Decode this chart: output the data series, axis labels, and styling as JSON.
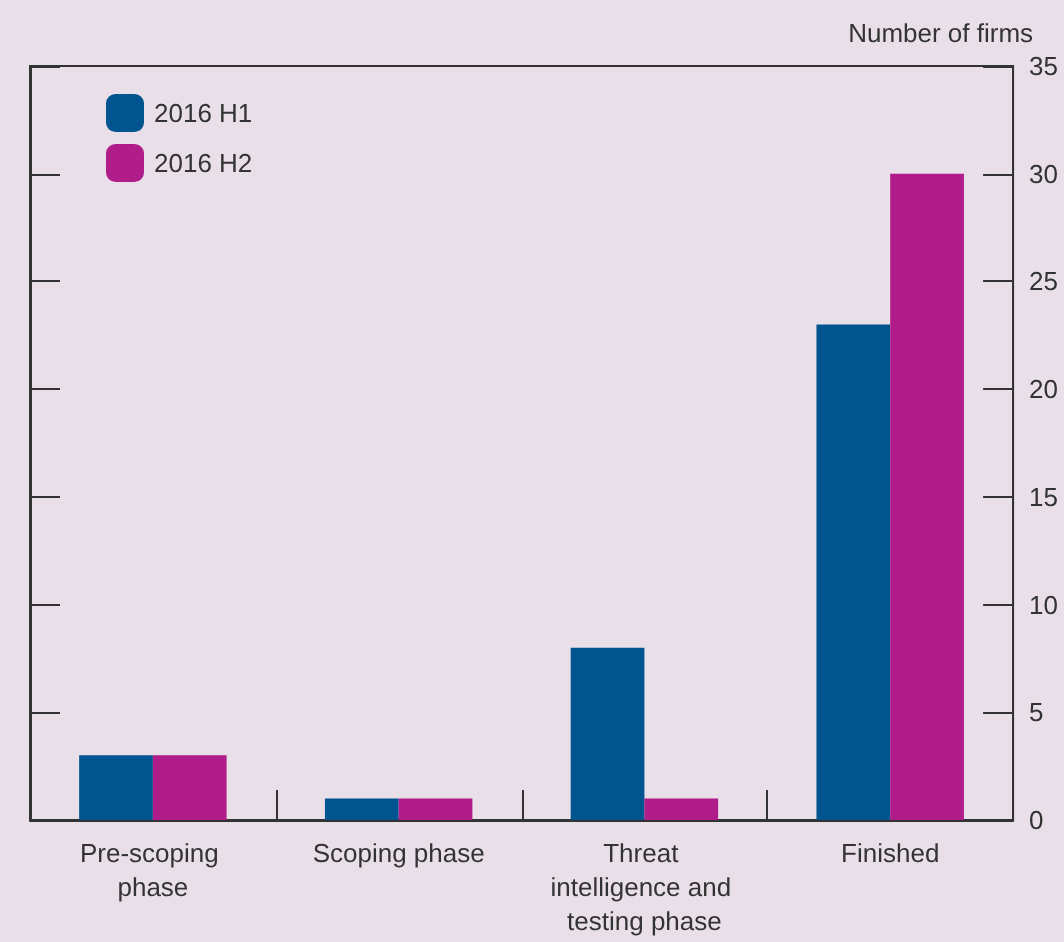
{
  "chart_data": {
    "type": "bar",
    "ylabel": "Number of firms",
    "categories": [
      "Pre-scoping phase",
      "Scoping phase",
      "Threat intelligence and testing phase",
      "Finished"
    ],
    "series": [
      {
        "name": "2016 H1",
        "color": "#00548f",
        "values": [
          3,
          1,
          8,
          23
        ]
      },
      {
        "name": "2016 H2",
        "color": "#b01c8a",
        "values": [
          3,
          1,
          1,
          30
        ]
      }
    ],
    "ylim": [
      0,
      35
    ],
    "yticks": [
      0,
      5,
      10,
      15,
      20,
      25,
      30,
      35
    ],
    "grid": false,
    "legend": "top left"
  }
}
